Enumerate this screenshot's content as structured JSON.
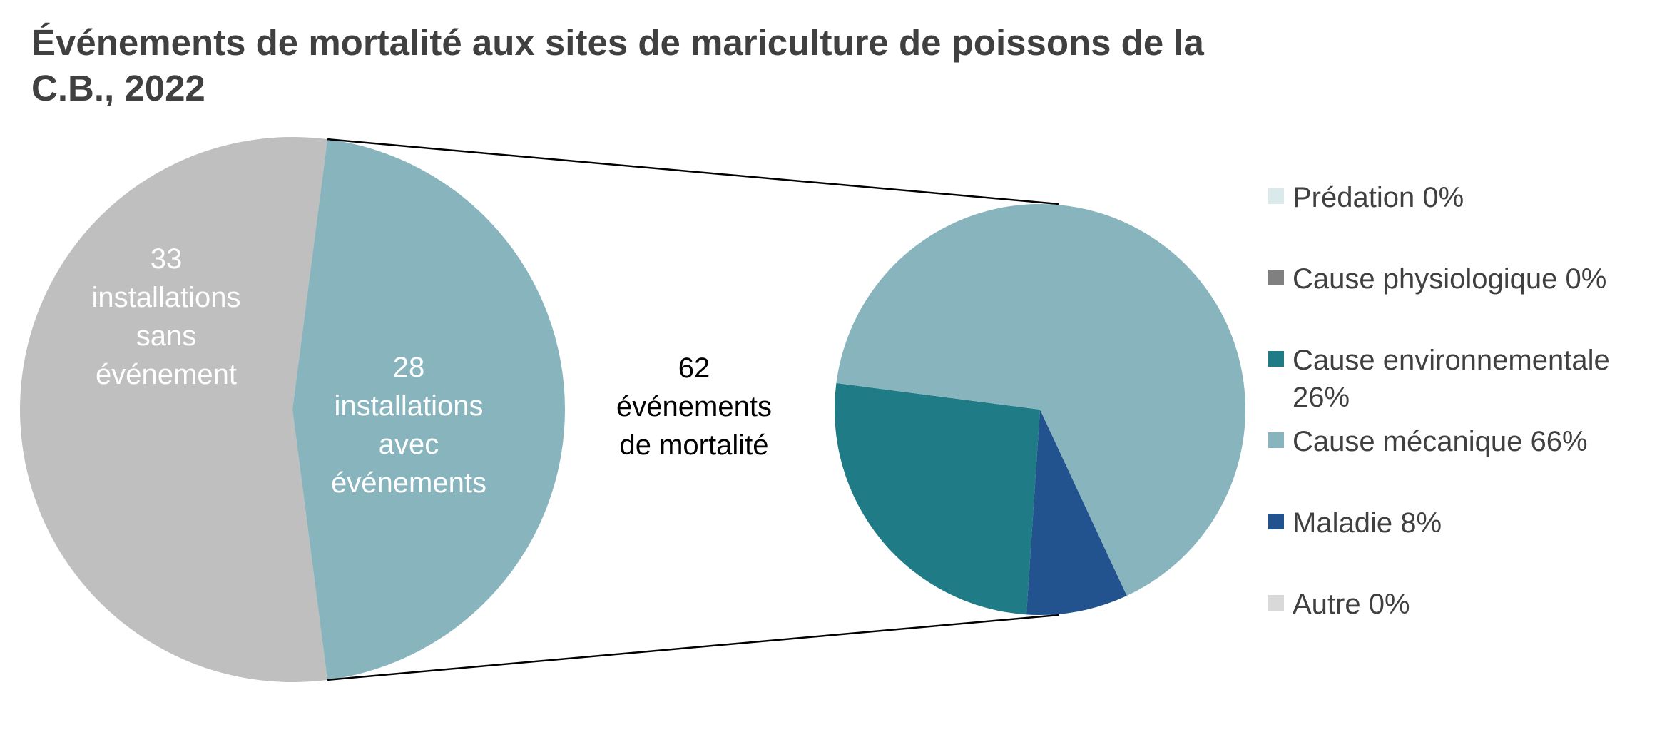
{
  "title": {
    "line1": "Événements de mortalité aux sites de mariculture de poissons de la",
    "line2": "C.B., 2022"
  },
  "chart_data": {
    "type": "pie",
    "title": "Événements de mortalité aux sites de mariculture de poissons de la C.B., 2022",
    "primary_pie": {
      "slices": [
        {
          "value": 33,
          "label_lines": [
            "33",
            "installations",
            "sans",
            "événement"
          ],
          "color": "#bfbfbf"
        },
        {
          "value": 28,
          "label_lines": [
            "28",
            "installations",
            "avec",
            "événements"
          ],
          "color": "#88b5bd"
        }
      ]
    },
    "connector_label_lines": [
      "62",
      "événements",
      "de mortalité"
    ],
    "secondary_pie": {
      "slices": [
        {
          "name": "Prédation",
          "value": 0,
          "legend_text": "Prédation 0%",
          "color": "#daeaea"
        },
        {
          "name": "Cause physiologique",
          "value": 0,
          "legend_text": "Cause physiologique 0%",
          "color": "#808080"
        },
        {
          "name": "Cause environnementale",
          "value": 26,
          "legend_lines": [
            "Cause environnementale",
            "26%"
          ],
          "color": "#1f7b85"
        },
        {
          "name": "Cause mécanique",
          "value": 66,
          "legend_text": "Cause mécanique 66%",
          "color": "#88b5bd"
        },
        {
          "name": "Maladie",
          "value": 8,
          "legend_text": "Maladie 8%",
          "color": "#22538f"
        },
        {
          "name": "Autre",
          "value": 0,
          "legend_text": "Autre 0%",
          "color": "#d9d9d9"
        }
      ]
    },
    "legend_position": "right"
  }
}
